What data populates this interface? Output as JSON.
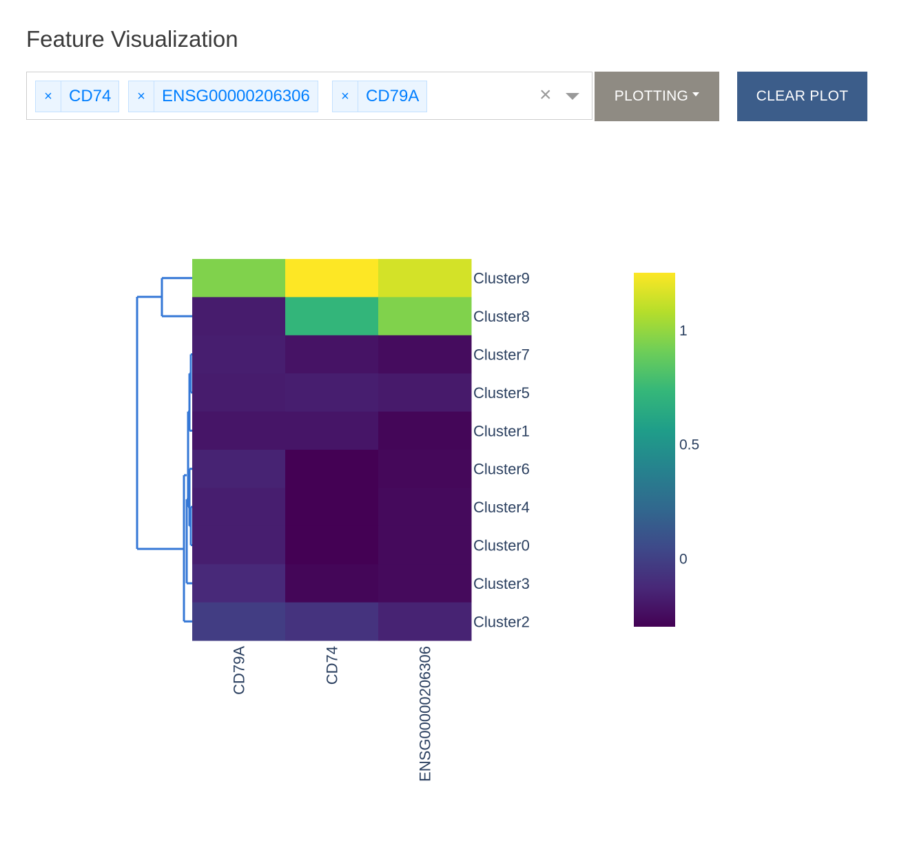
{
  "title": "Feature Visualization",
  "selector": {
    "chips": [
      {
        "label": "CD74",
        "remove": "×"
      },
      {
        "label": "ENSG00000206306",
        "remove": "×"
      },
      {
        "label": "CD79A",
        "remove": "×"
      }
    ],
    "clear_icon": "×"
  },
  "buttons": {
    "plotting": "PLOTTING",
    "clear_plot": "CLEAR PLOT"
  },
  "chart_data": {
    "type": "heatmap",
    "columns": [
      "CD79A",
      "CD74",
      "ENSG00000206306"
    ],
    "rows": [
      "Cluster9",
      "Cluster8",
      "Cluster7",
      "Cluster5",
      "Cluster1",
      "Cluster6",
      "Cluster4",
      "Cluster0",
      "Cluster3",
      "Cluster2"
    ],
    "values": [
      [
        0.95,
        1.25,
        1.15
      ],
      [
        -0.18,
        0.72,
        0.95
      ],
      [
        -0.17,
        -0.22,
        -0.25
      ],
      [
        -0.18,
        -0.17,
        -0.19
      ],
      [
        -0.21,
        -0.21,
        -0.28
      ],
      [
        -0.15,
        -0.3,
        -0.27
      ],
      [
        -0.17,
        -0.3,
        -0.26
      ],
      [
        -0.17,
        -0.3,
        -0.26
      ],
      [
        -0.12,
        -0.28,
        -0.26
      ],
      [
        -0.02,
        -0.07,
        -0.15
      ]
    ],
    "colorscale": "Viridis",
    "zmin": -0.3,
    "zmax": 1.25,
    "colorbar_ticks": [
      0,
      0.5,
      1
    ],
    "dendrogram": "rows",
    "dendrogram_color": "#3477d6"
  }
}
